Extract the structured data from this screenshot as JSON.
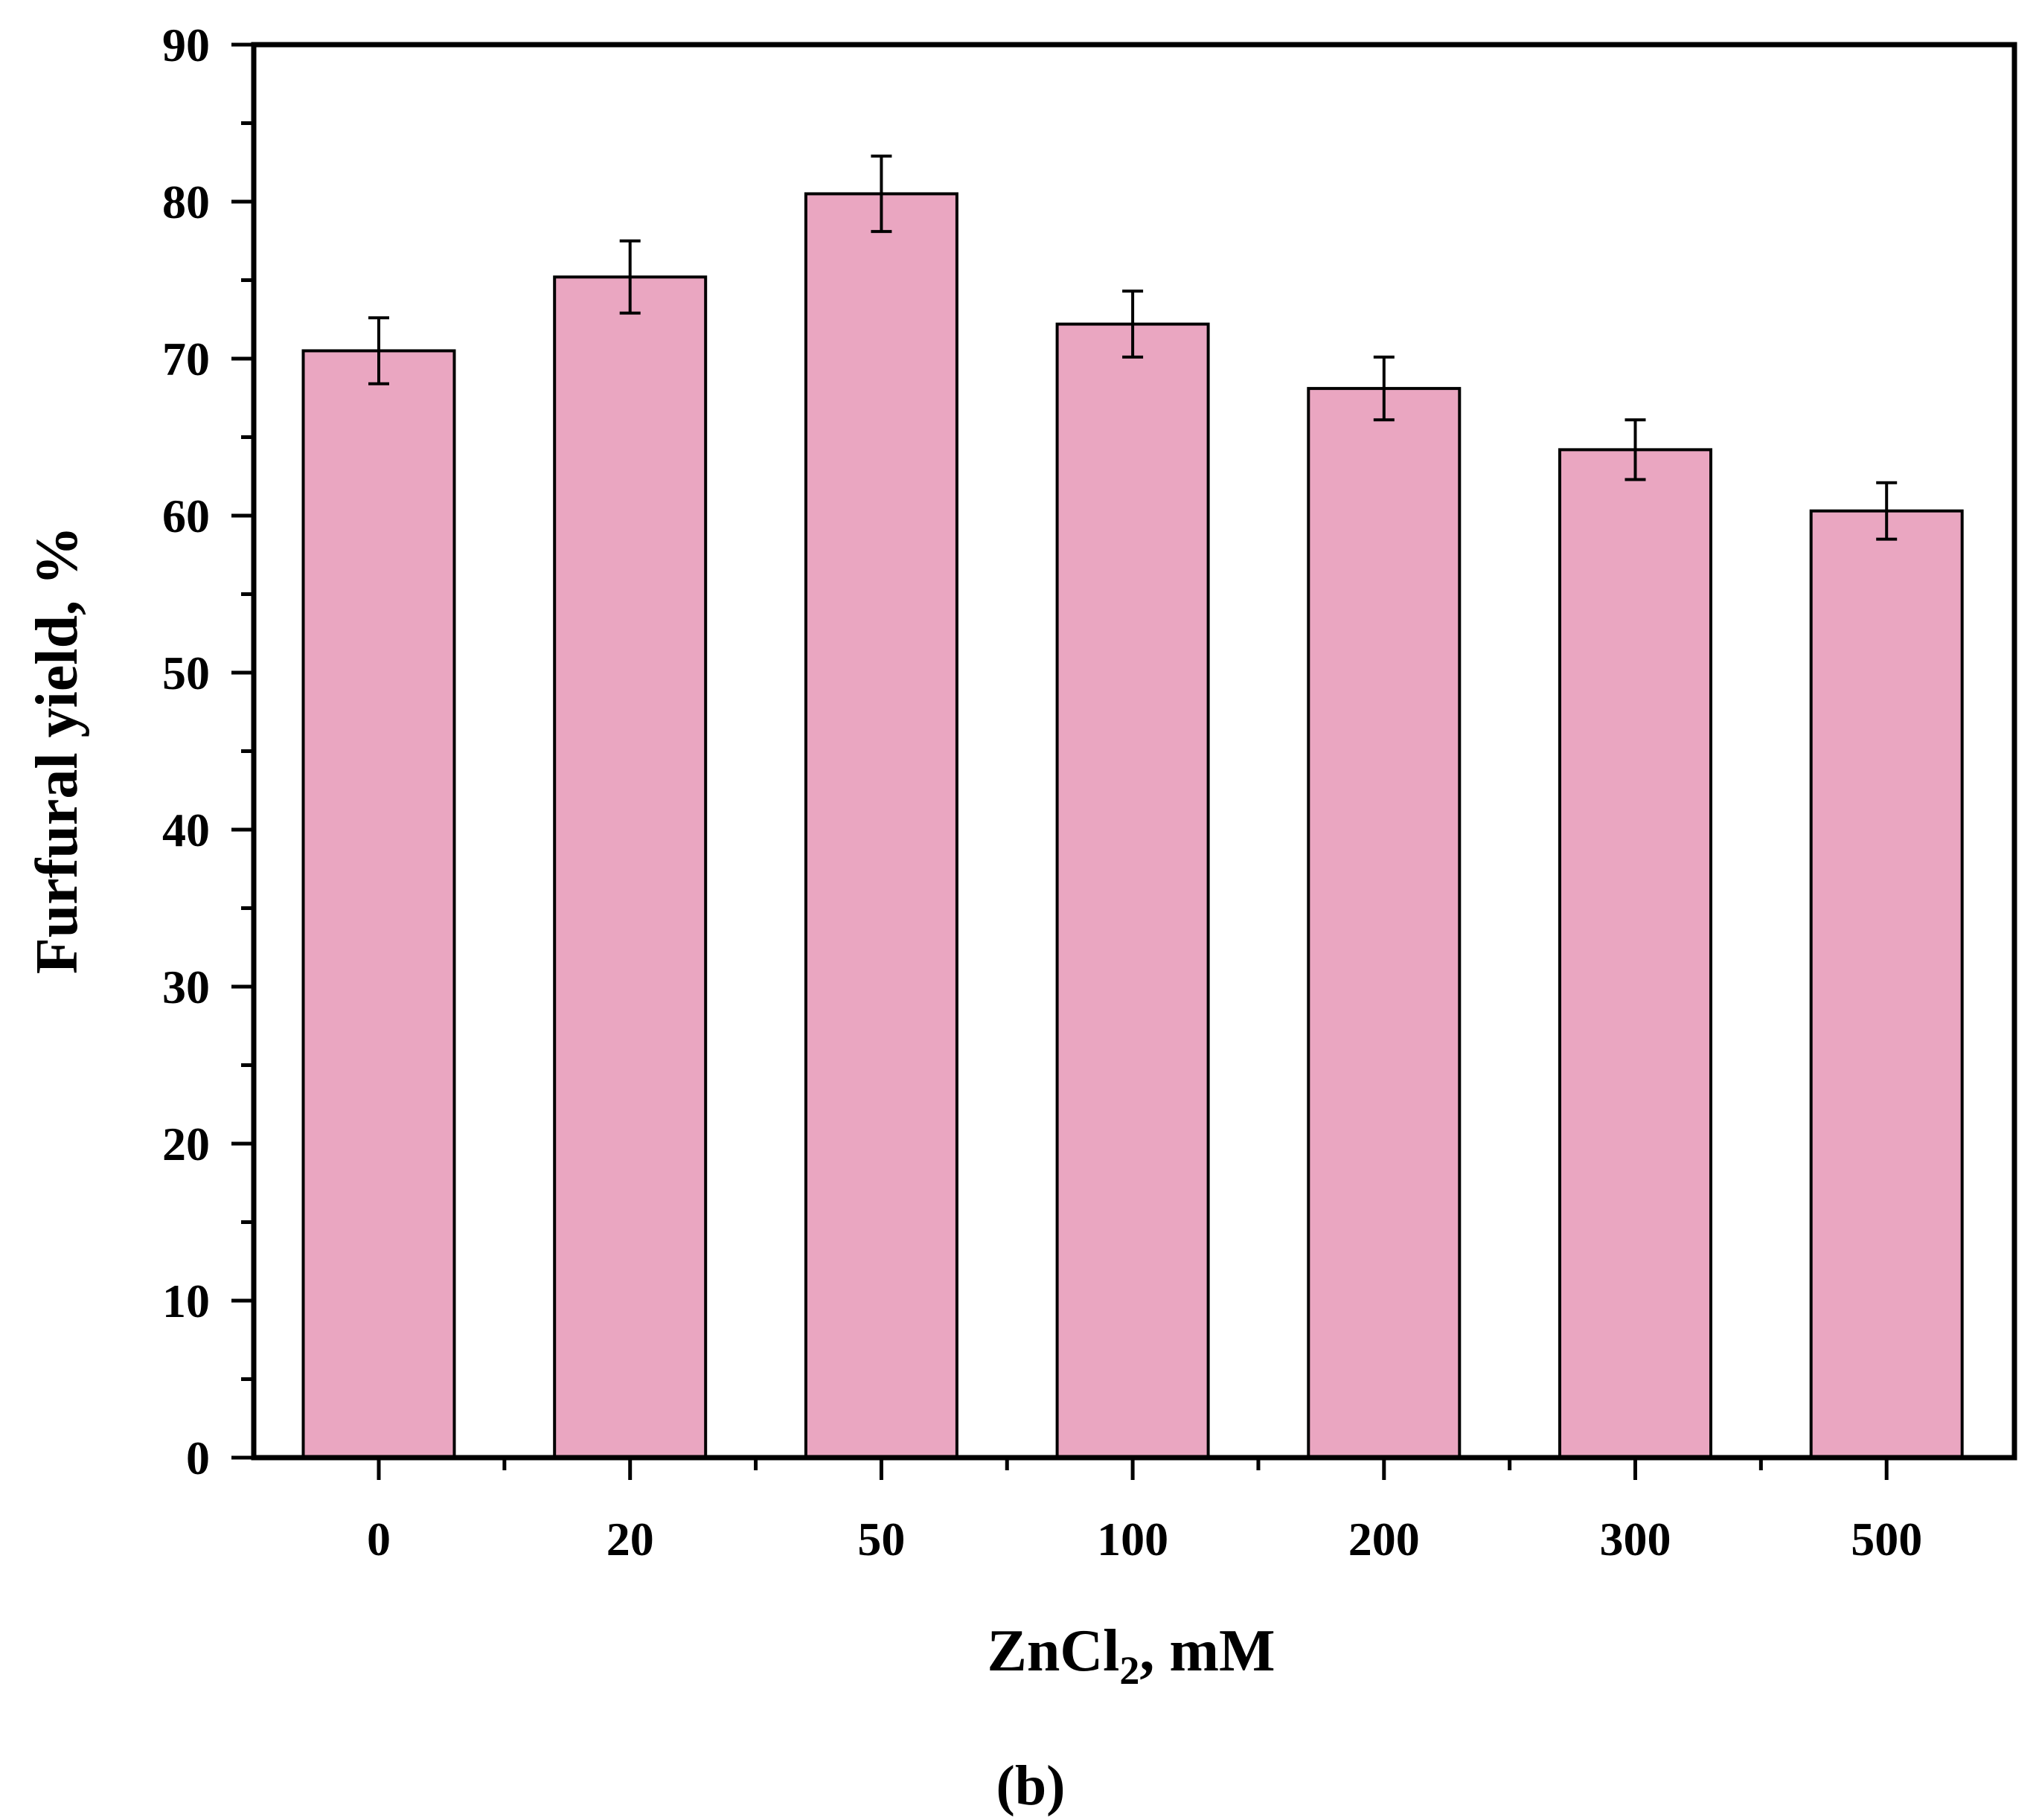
{
  "chart_data": {
    "type": "bar",
    "categories": [
      "0",
      "20",
      "50",
      "100",
      "200",
      "300",
      "500"
    ],
    "values": [
      70.5,
      75.2,
      80.5,
      72.2,
      68.1,
      64.2,
      60.3
    ],
    "errors": [
      2.1,
      2.3,
      2.4,
      2.1,
      2.0,
      1.9,
      1.8
    ],
    "ylabel": "Furfural yield, %",
    "xlabel_main": "ZnCl",
    "xlabel_sub": "2",
    "xlabel_rest": ", mM",
    "ylim": [
      0,
      90
    ],
    "yticks": [
      "0",
      "10",
      "20",
      "30",
      "40",
      "50",
      "60",
      "70",
      "80",
      "90"
    ],
    "panel_label": "(b)",
    "colors": {
      "bar": "#EAA6C1",
      "stroke": "#000000"
    },
    "grid": false,
    "legend": "none"
  }
}
